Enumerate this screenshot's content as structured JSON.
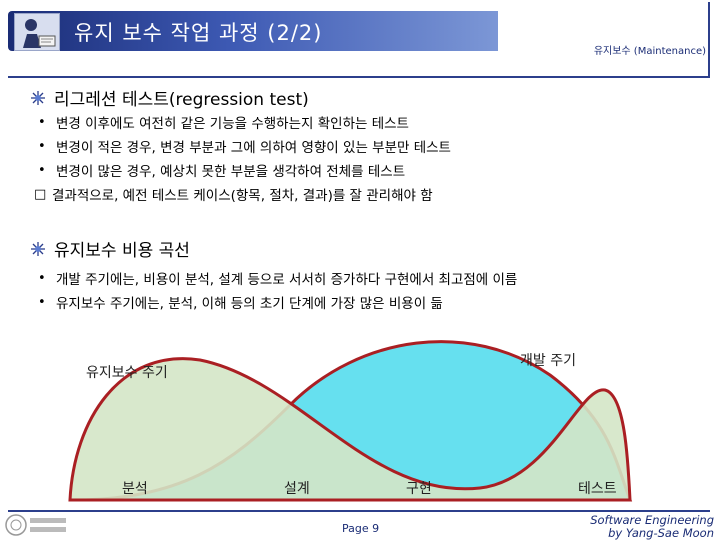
{
  "header": {
    "title": "유지 보수 작업 과정 (2/2)",
    "section": "유지보수 (Maintenance)"
  },
  "sections": [
    {
      "heading": "리그레션 테스트(regression test)",
      "items": [
        {
          "marker": "•",
          "text": "변경 이후에도 여전히 같은 기능을 수행하는지 확인하는 테스트"
        },
        {
          "marker": "•",
          "text": "변경이 적은 경우, 변경 부분과 그에 의하여 영향이 있는 부분만 테스트"
        },
        {
          "marker": "•",
          "text": "변경이 많은 경우, 예상치 못한 부분을 생각하여 전체를 테스트"
        },
        {
          "marker": "□",
          "text": "결과적으로, 예전 테스트 케이스(항목, 절차, 결과)를 잘 관리해야 함"
        }
      ]
    },
    {
      "heading": "유지보수 비용 곡선",
      "items": [
        {
          "marker": "•",
          "text": "개발 주기에는, 비용이 분석, 설계 등으로 서서히 증가하다 구현에서 최고점에 이름"
        },
        {
          "marker": "•",
          "text": "유지보수 주기에는, 분석, 이해 등의 초기 단계에 가장 많은 비용이 듦"
        }
      ]
    }
  ],
  "diagram": {
    "maintenance_label": "유지보수 주기",
    "development_label": "개발 주기",
    "phases": [
      "분석",
      "설계",
      "구현",
      "테스트"
    ],
    "colors": {
      "development": "#66e0ef",
      "maintenance": "#d4e5c7",
      "outline": "#aa1f23"
    }
  },
  "footer": {
    "page": "Page 9",
    "credit_line1": "Software Engineering",
    "credit_line2": "by Yang-Sae Moon"
  }
}
